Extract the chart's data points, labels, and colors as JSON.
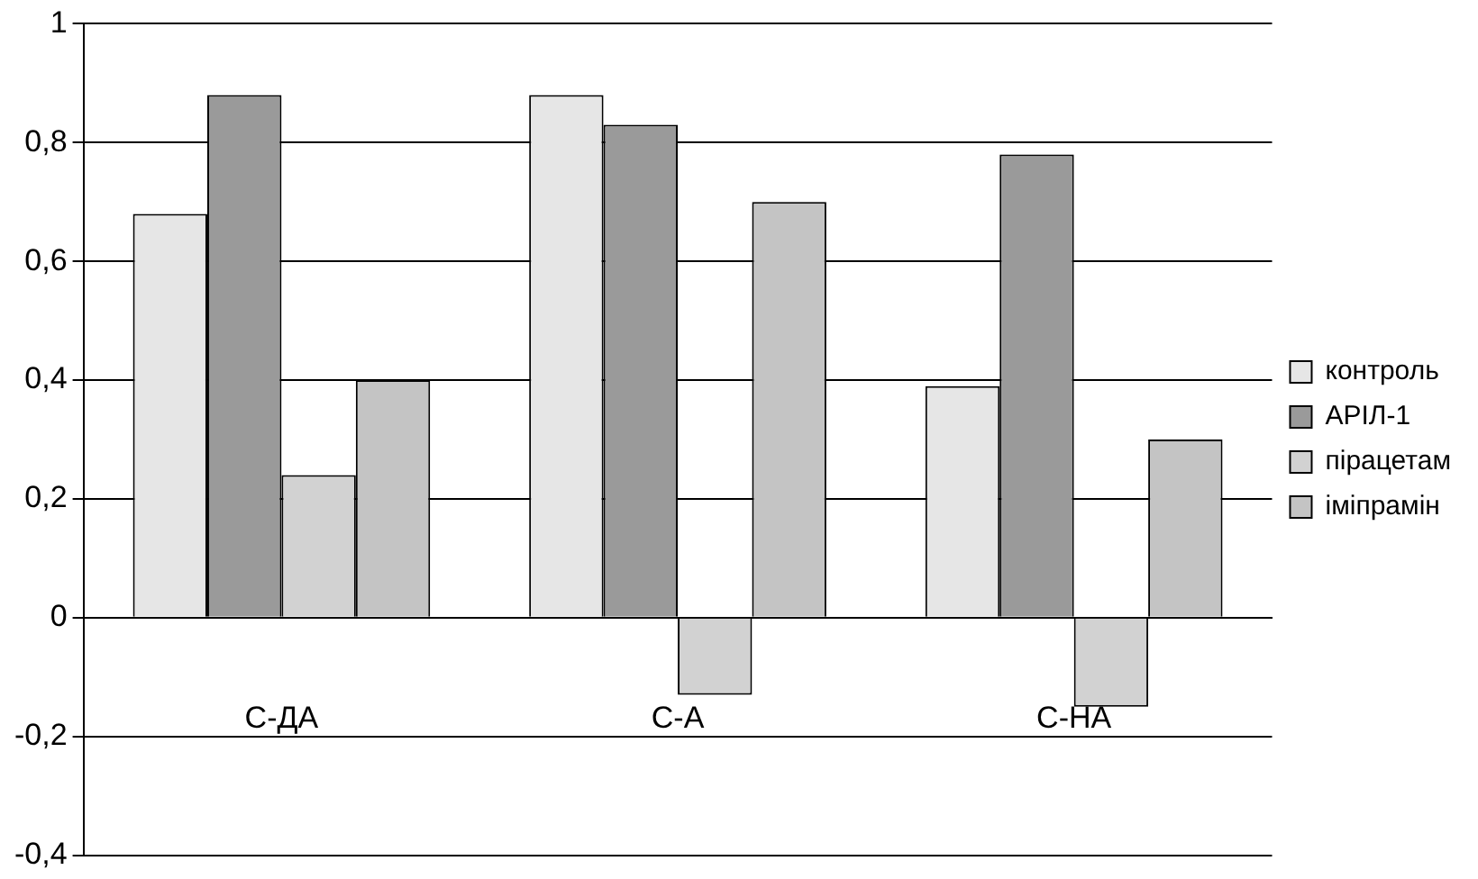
{
  "chart_data": {
    "type": "bar",
    "categories": [
      "С-ДА",
      "С-А",
      "С-НА"
    ],
    "series": [
      {
        "name": "контроль",
        "color": "#e6e6e6",
        "values": [
          0.68,
          0.88,
          0.39
        ]
      },
      {
        "name": "АРІЛ-1",
        "color": "#9a9a9a",
        "values": [
          0.88,
          0.83,
          0.78
        ]
      },
      {
        "name": "пірацетам",
        "color": "#d2d2d2",
        "values": [
          0.24,
          -0.13,
          -0.15
        ]
      },
      {
        "name": "іміпрамін",
        "color": "#c4c4c4",
        "values": [
          0.4,
          0.7,
          0.3
        ]
      }
    ],
    "ylim": [
      -0.4,
      1
    ],
    "yticks": [
      {
        "value": -0.4,
        "label": "-0,4"
      },
      {
        "value": -0.2,
        "label": "-0,2"
      },
      0,
      {
        "value": 0.2,
        "label": "0,2"
      },
      {
        "value": 0.4,
        "label": "0,4"
      },
      {
        "value": 0.6,
        "label": "0,6"
      },
      {
        "value": 0.8,
        "label": "0,8"
      },
      1
    ],
    "grid": "y",
    "legend": "right"
  }
}
